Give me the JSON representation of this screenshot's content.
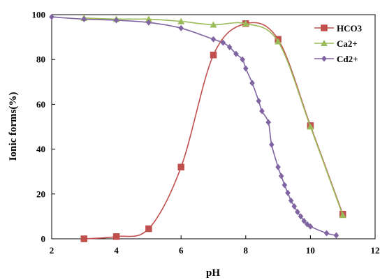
{
  "chart_data": {
    "type": "line",
    "title": "",
    "xlabel": "pH",
    "ylabel": "Ionic forms(%)",
    "xlim": [
      2,
      12
    ],
    "ylim": [
      0,
      100
    ],
    "x_ticks": [
      "2",
      "4",
      "6",
      "8",
      "10",
      "12"
    ],
    "y_ticks": [
      "0",
      "20",
      "40",
      "60",
      "80",
      "100"
    ],
    "legend_position": "top-right",
    "grid": false,
    "series": [
      {
        "name": "HCO3",
        "color": "#c0504d",
        "marker": "square",
        "x": [
          3,
          4,
          5,
          6,
          7,
          8,
          9,
          10,
          11
        ],
        "y": [
          0,
          1,
          4.5,
          32,
          82,
          96,
          89,
          50.5,
          11
        ]
      },
      {
        "name": "Ca2+",
        "color": "#9bbb59",
        "marker": "triangle",
        "x": [
          3,
          4,
          5,
          6,
          7,
          8,
          9,
          10,
          11
        ],
        "y": [
          98.5,
          98,
          98,
          97,
          95.5,
          96,
          88,
          50,
          10.5
        ]
      },
      {
        "name": "Cd2+",
        "color": "#8064a2",
        "marker": "diamond",
        "x": [
          2,
          3,
          4,
          5,
          6,
          7,
          7.3,
          7.5,
          7.7,
          7.9,
          8,
          8.2,
          8.4,
          8.5,
          8.7,
          8.8,
          9,
          9.1,
          9.2,
          9.3,
          9.4,
          9.5,
          9.6,
          9.7,
          9.8,
          9.9,
          10,
          10.5,
          10.8
        ],
        "y": [
          99,
          98,
          97.5,
          96.5,
          94,
          89,
          87.5,
          85.5,
          82.5,
          80,
          76,
          69.5,
          61.5,
          57,
          52,
          42,
          32,
          28,
          24,
          20.5,
          17,
          14.5,
          12,
          10,
          8,
          6.5,
          5.5,
          2.5,
          1.5
        ]
      }
    ]
  }
}
